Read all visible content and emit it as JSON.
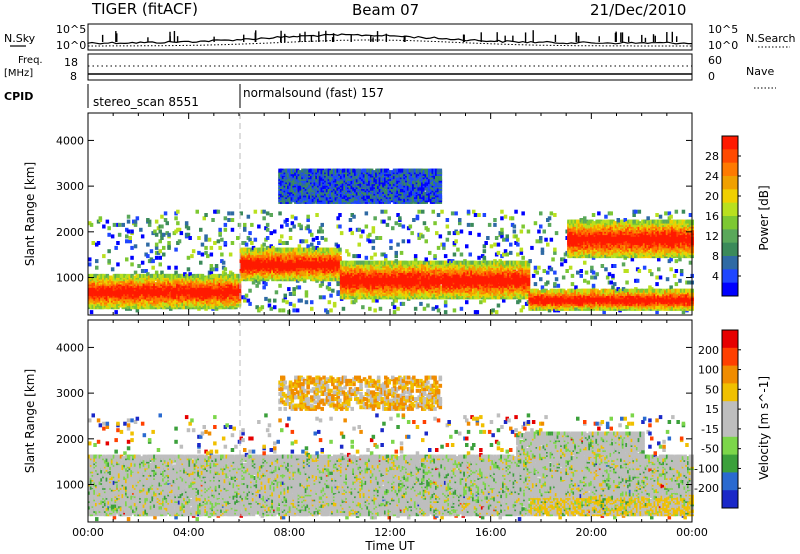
{
  "header": {
    "left": "TIGER (fitACF)",
    "center": "Beam 07",
    "right": "21/Dec/2010"
  },
  "panels": {
    "nsky_label": "N.Sky",
    "nsearch_label": "N.Search",
    "nsky_ticks": [
      "10^5",
      "10^0"
    ],
    "freq_label": "Freq.",
    "freq_unit": "[MHz]",
    "freq_ticks": [
      "18",
      "8"
    ],
    "nave_label": "Nave",
    "nave_ticks": [
      "60",
      "0"
    ],
    "cpid_label": "CPID",
    "cpid_modes": [
      "stereo_scan 8551",
      "normalsound (fast) 157"
    ]
  },
  "colors": {
    "power_scale": [
      "#0000ff",
      "#1f46ff",
      "#2f6aa4",
      "#3b8a5a",
      "#5aa85a",
      "#7dc832",
      "#b9e01e",
      "#f0d000",
      "#f0a000",
      "#ff7a00",
      "#ff4a00",
      "#ff1a00"
    ],
    "velocity_scale": [
      "#1a28c8",
      "#2a6ad0",
      "#3ba03b",
      "#7cd64a",
      "#bebebe",
      "#bebebe",
      "#f0c000",
      "#f08c00",
      "#ff4000",
      "#e60000"
    ],
    "ground_scatter": "#bebebe"
  },
  "chart_data": [
    {
      "type": "heatmap",
      "quantity": "power",
      "ylabel": "Slant Range [km]",
      "yticks": [
        "1000",
        "2000",
        "3000",
        "4000"
      ],
      "ylim": [
        180,
        4600
      ],
      "xlim": [
        0,
        24
      ],
      "colorbar": {
        "label": "Power [dB]",
        "ticks": [
          "4",
          "8",
          "12",
          "16",
          "20",
          "24",
          "28"
        ],
        "range": [
          0,
          30
        ]
      },
      "bands": [
        {
          "t0": 0.0,
          "t1": 6.0,
          "r0": 300,
          "r1": 1000,
          "level": "high"
        },
        {
          "t0": 6.0,
          "t1": 10.0,
          "r0": 900,
          "r1": 1600,
          "level": "high"
        },
        {
          "t0": 10.0,
          "t1": 17.5,
          "r0": 500,
          "r1": 1300,
          "level": "high"
        },
        {
          "t0": 7.5,
          "t1": 14.0,
          "r0": 2600,
          "r1": 3300,
          "level": "low"
        },
        {
          "t0": 19.0,
          "t1": 24.0,
          "r0": 1400,
          "r1": 2200,
          "level": "high"
        },
        {
          "t0": 17.5,
          "t1": 24.0,
          "r0": 250,
          "r1": 700,
          "level": "high"
        }
      ]
    },
    {
      "type": "heatmap",
      "quantity": "velocity",
      "xlabel": "Time UT",
      "xticks": [
        "00:00",
        "04:00",
        "08:00",
        "12:00",
        "16:00",
        "20:00",
        "00:00"
      ],
      "ylabel": "Slant Range [km]",
      "yticks": [
        "1000",
        "2000",
        "3000",
        "4000"
      ],
      "ylim": [
        180,
        4600
      ],
      "xlim": [
        0,
        24
      ],
      "colorbar": {
        "label": "Velocity [m s^-1]",
        "ticks": [
          "200",
          "100",
          "50",
          "15",
          "-15",
          "-50",
          "-100",
          "-200"
        ],
        "range": [
          -250,
          250
        ]
      }
    }
  ]
}
